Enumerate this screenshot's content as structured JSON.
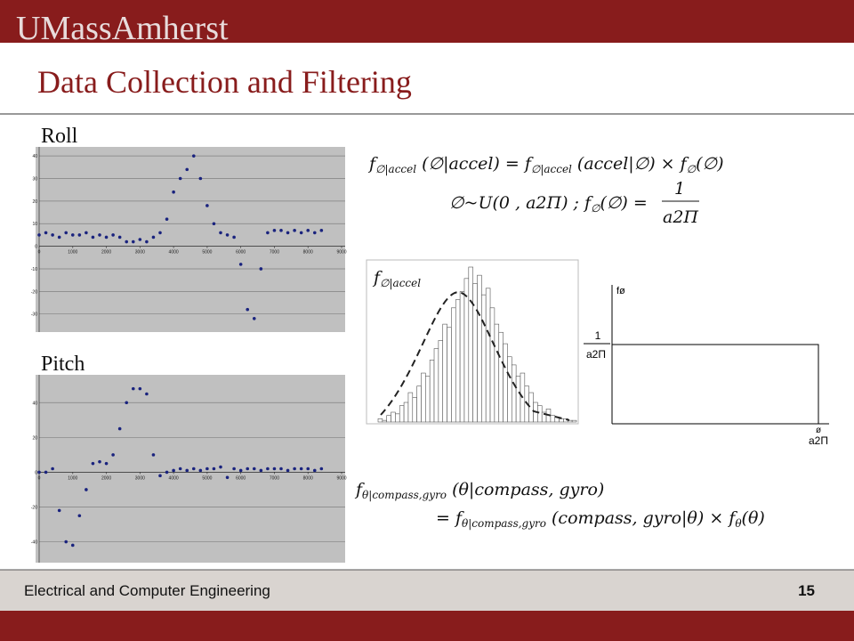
{
  "header": {
    "logo": "UMassAmherst"
  },
  "title": "Data Collection and Filtering",
  "chart_data": [
    {
      "type": "scatter",
      "title": "Roll",
      "color": "#1a237e",
      "grid": true,
      "x": [
        0,
        200,
        400,
        600,
        800,
        1000,
        1200,
        1400,
        1600,
        1800,
        2000,
        2200,
        2400,
        2600,
        2800,
        3000,
        3200,
        3400,
        3600,
        3800,
        4000,
        4200,
        4400,
        4600,
        4800,
        5000,
        5200,
        5400,
        5600,
        5800,
        6000,
        6200,
        6400,
        6600,
        6800,
        7000,
        7200,
        7400,
        7600,
        7800,
        8000,
        8200,
        8400
      ],
      "values": [
        5,
        6,
        5,
        4,
        6,
        5,
        5,
        6,
        4,
        5,
        4,
        5,
        4,
        2,
        2,
        3,
        2,
        4,
        6,
        12,
        24,
        30,
        34,
        40,
        30,
        18,
        10,
        6,
        5,
        4,
        -8,
        -28,
        -32,
        -10,
        6,
        7,
        7,
        6,
        7,
        6,
        7,
        6,
        7
      ],
      "xlim": [
        0,
        9000
      ],
      "xticks": [
        0,
        1000,
        2000,
        3000,
        4000,
        5000,
        6000,
        7000,
        8000,
        9000
      ],
      "ylim": [
        -38,
        44
      ],
      "yticks": [
        40,
        30,
        20,
        10,
        0,
        -10,
        -20,
        -30
      ]
    },
    {
      "type": "scatter",
      "title": "Pitch",
      "color": "#1a237e",
      "grid": true,
      "x": [
        0,
        200,
        400,
        600,
        800,
        1000,
        1200,
        1400,
        1600,
        1800,
        2000,
        2200,
        2400,
        2600,
        2800,
        3000,
        3200,
        3400,
        3600,
        3800,
        4000,
        4200,
        4400,
        4600,
        4800,
        5000,
        5200,
        5400,
        5600,
        5800,
        6000,
        6200,
        6400,
        6600,
        6800,
        7000,
        7200,
        7400,
        7600,
        7800,
        8000,
        8200,
        8400
      ],
      "values": [
        0,
        0,
        2,
        -22,
        -40,
        -42,
        -25,
        -10,
        5,
        6,
        5,
        10,
        25,
        40,
        48,
        48,
        45,
        10,
        -2,
        0,
        1,
        2,
        1,
        2,
        1,
        2,
        2,
        3,
        -3,
        2,
        1,
        2,
        2,
        1,
        2,
        2,
        2,
        1,
        2,
        2,
        2,
        1,
        2
      ],
      "xlim": [
        0,
        9000
      ],
      "xticks": [
        0,
        1000,
        2000,
        3000,
        4000,
        5000,
        6000,
        7000,
        8000,
        9000
      ],
      "ylim": [
        -52,
        56
      ],
      "yticks": [
        40,
        20,
        0,
        -20,
        -40
      ]
    },
    {
      "type": "bar",
      "title_parts": [
        "f",
        "∅|accel"
      ],
      "color": "#ffffff",
      "values": [
        2,
        1,
        4,
        6,
        5,
        10,
        12,
        18,
        15,
        22,
        30,
        28,
        38,
        45,
        50,
        60,
        58,
        70,
        75,
        80,
        88,
        95,
        85,
        90,
        78,
        82,
        70,
        60,
        55,
        48,
        40,
        35,
        28,
        30,
        22,
        18,
        12,
        10,
        6,
        8,
        4,
        3,
        2,
        2,
        1,
        1
      ]
    }
  ],
  "equations": {
    "eq1": [
      "f",
      "∅|accel",
      " (∅|accel) = f",
      "∅|accel",
      " (accel|∅) × f",
      "∅",
      "(∅)"
    ],
    "eq2": {
      "parts": [
        "∅~U(0 , a2Π) ;  f",
        "∅",
        "(∅) ="
      ],
      "numerator": "1",
      "denominator": "a2Π"
    },
    "eq3": [
      "f",
      "θ|compass,gyro",
      " (θ|compass, gyro)"
    ],
    "eq4": [
      "= f",
      "θ|compass,gyro",
      " (compass, gyro|θ) × f",
      "θ",
      "(θ)"
    ]
  },
  "uniform": {
    "y_label": "fø",
    "numerator": "1",
    "denominator": "a2Π",
    "x_label_top": "ø",
    "x_label_bottom": "a2Π"
  },
  "footer": {
    "text": "Electrical and Computer Engineering",
    "page": "15"
  }
}
